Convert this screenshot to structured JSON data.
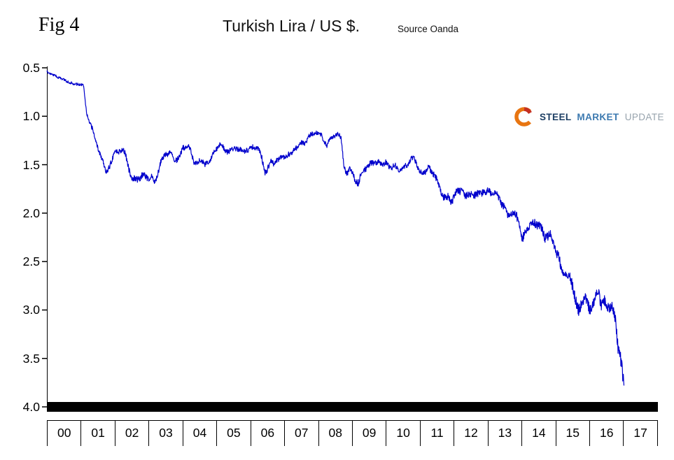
{
  "fig_label": "Fig 4",
  "title": "Turkish Lira / US $.",
  "source": "Source Oanda",
  "logo": {
    "steel": "STEEL",
    "market": "MARKET",
    "update": "UPDATE",
    "steel_color": "#1c3e63",
    "market_color": "#3d7ab0",
    "update_color": "#97a3ad",
    "icon_orange": "#e87511",
    "icon_red": "#c53022"
  },
  "chart_data": {
    "type": "line",
    "title": "Turkish Lira / US $.",
    "source": "Source Oanda",
    "series_name": "Turkish Lira per US Dollar",
    "line_color": "#0000cc",
    "grid": false,
    "legend": false,
    "y_inverted": true,
    "ylim": [
      0.5,
      4.0
    ],
    "y_ticks": [
      0.5,
      1.0,
      1.5,
      2.0,
      2.5,
      3.0,
      3.5,
      4.0
    ],
    "y_tick_labels": [
      "0.5",
      "1.0",
      "1.5",
      "2.0",
      "2.5",
      "3.0",
      "3.5",
      "4.0"
    ],
    "x_ticks": [
      "00",
      "01",
      "02",
      "03",
      "04",
      "05",
      "06",
      "07",
      "08",
      "09",
      "10",
      "11",
      "12",
      "13",
      "14",
      "15",
      "16",
      "17"
    ],
    "start": "2000-01",
    "end": "2017-01",
    "monthly_values": [
      0.54,
      0.56,
      0.57,
      0.58,
      0.6,
      0.61,
      0.62,
      0.64,
      0.65,
      0.66,
      0.67,
      0.67,
      0.67,
      0.68,
      0.96,
      1.07,
      1.12,
      1.22,
      1.33,
      1.4,
      1.47,
      1.58,
      1.53,
      1.45,
      1.35,
      1.37,
      1.36,
      1.33,
      1.42,
      1.55,
      1.66,
      1.64,
      1.65,
      1.65,
      1.59,
      1.63,
      1.65,
      1.61,
      1.68,
      1.63,
      1.49,
      1.42,
      1.4,
      1.39,
      1.36,
      1.45,
      1.45,
      1.41,
      1.33,
      1.32,
      1.31,
      1.36,
      1.5,
      1.49,
      1.44,
      1.47,
      1.5,
      1.48,
      1.43,
      1.36,
      1.34,
      1.29,
      1.3,
      1.36,
      1.37,
      1.35,
      1.33,
      1.34,
      1.34,
      1.35,
      1.36,
      1.35,
      1.33,
      1.31,
      1.34,
      1.33,
      1.43,
      1.59,
      1.55,
      1.46,
      1.49,
      1.46,
      1.45,
      1.42,
      1.42,
      1.4,
      1.39,
      1.36,
      1.33,
      1.31,
      1.27,
      1.28,
      1.25,
      1.19,
      1.18,
      1.17,
      1.17,
      1.19,
      1.26,
      1.3,
      1.24,
      1.22,
      1.2,
      1.17,
      1.23,
      1.51,
      1.6,
      1.54,
      1.58,
      1.66,
      1.7,
      1.6,
      1.55,
      1.54,
      1.49,
      1.48,
      1.49,
      1.47,
      1.49,
      1.5,
      1.47,
      1.52,
      1.53,
      1.49,
      1.55,
      1.58,
      1.53,
      1.51,
      1.49,
      1.43,
      1.44,
      1.53,
      1.58,
      1.59,
      1.57,
      1.52,
      1.58,
      1.61,
      1.66,
      1.75,
      1.83,
      1.84,
      1.82,
      1.89,
      1.83,
      1.76,
      1.78,
      1.76,
      1.83,
      1.81,
      1.8,
      1.82,
      1.8,
      1.8,
      1.79,
      1.78,
      1.77,
      1.79,
      1.81,
      1.79,
      1.86,
      1.92,
      1.93,
      2.02,
      2.02,
      1.99,
      2.02,
      2.13,
      2.27,
      2.21,
      2.15,
      2.11,
      2.09,
      2.12,
      2.13,
      2.16,
      2.26,
      2.24,
      2.22,
      2.32,
      2.41,
      2.45,
      2.6,
      2.67,
      2.64,
      2.67,
      2.77,
      2.9,
      3.02,
      2.92,
      2.87,
      2.92,
      3.01,
      2.94,
      2.86,
      2.83,
      2.95,
      2.89,
      3.01,
      2.96,
      2.98,
      3.1,
      3.42,
      3.52,
      3.78
    ]
  }
}
